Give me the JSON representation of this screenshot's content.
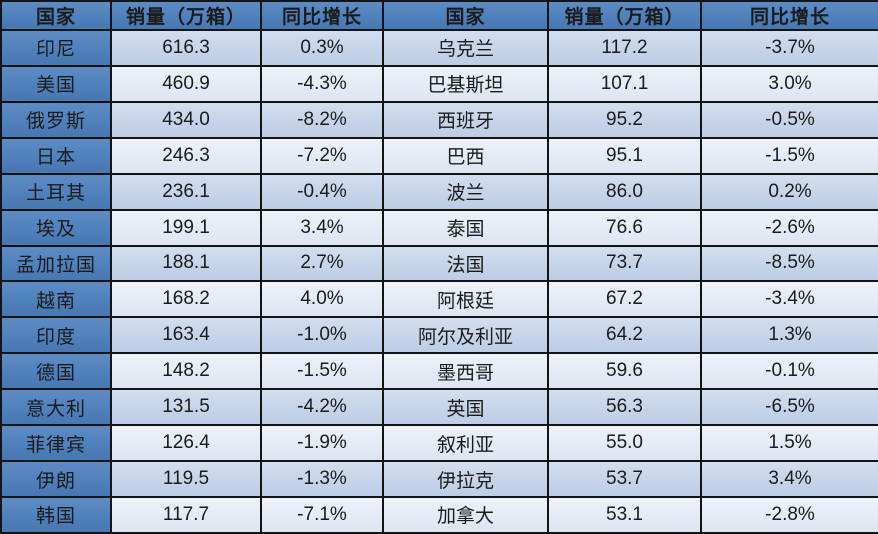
{
  "chart_data": {
    "type": "table",
    "title": "",
    "layout": "two side-by-side tables sharing one grid; blue header row, blue first column on left table, alternating banded rows",
    "column_headers": [
      "国家",
      "销量（万箱）",
      "同比增长"
    ],
    "rows": [
      {
        "left": {
          "country": "印尼",
          "sales": "616.3",
          "growth": "0.3%"
        },
        "right": {
          "country": "乌克兰",
          "sales": "117.2",
          "growth": "-3.7%"
        }
      },
      {
        "left": {
          "country": "美国",
          "sales": "460.9",
          "growth": "-4.3%"
        },
        "right": {
          "country": "巴基斯坦",
          "sales": "107.1",
          "growth": "3.0%"
        }
      },
      {
        "left": {
          "country": "俄罗斯",
          "sales": "434.0",
          "growth": "-8.2%"
        },
        "right": {
          "country": "西班牙",
          "sales": "95.2",
          "growth": "-0.5%"
        }
      },
      {
        "left": {
          "country": "日本",
          "sales": "246.3",
          "growth": "-7.2%"
        },
        "right": {
          "country": "巴西",
          "sales": "95.1",
          "growth": "-1.5%"
        }
      },
      {
        "left": {
          "country": "土耳其",
          "sales": "236.1",
          "growth": "-0.4%"
        },
        "right": {
          "country": "波兰",
          "sales": "86.0",
          "growth": "0.2%"
        }
      },
      {
        "left": {
          "country": "埃及",
          "sales": "199.1",
          "growth": "3.4%"
        },
        "right": {
          "country": "泰国",
          "sales": "76.6",
          "growth": "-2.6%"
        }
      },
      {
        "left": {
          "country": "孟加拉国",
          "sales": "188.1",
          "growth": "2.7%"
        },
        "right": {
          "country": "法国",
          "sales": "73.7",
          "growth": "-8.5%"
        }
      },
      {
        "left": {
          "country": "越南",
          "sales": "168.2",
          "growth": "4.0%"
        },
        "right": {
          "country": "阿根廷",
          "sales": "67.2",
          "growth": "-3.4%"
        }
      },
      {
        "left": {
          "country": "印度",
          "sales": "163.4",
          "growth": "-1.0%"
        },
        "right": {
          "country": "阿尔及利亚",
          "sales": "64.2",
          "growth": "1.3%"
        }
      },
      {
        "left": {
          "country": "德国",
          "sales": "148.2",
          "growth": "-1.5%"
        },
        "right": {
          "country": "墨西哥",
          "sales": "59.6",
          "growth": "-0.1%"
        }
      },
      {
        "left": {
          "country": "意大利",
          "sales": "131.5",
          "growth": "-4.2%"
        },
        "right": {
          "country": "英国",
          "sales": "56.3",
          "growth": "-6.5%"
        }
      },
      {
        "left": {
          "country": "菲律宾",
          "sales": "126.4",
          "growth": "-1.9%"
        },
        "right": {
          "country": "叙利亚",
          "sales": "55.0",
          "growth": "1.5%"
        }
      },
      {
        "left": {
          "country": "伊朗",
          "sales": "119.5",
          "growth": "-1.3%"
        },
        "right": {
          "country": "伊拉克",
          "sales": "53.7",
          "growth": "3.4%"
        }
      },
      {
        "left": {
          "country": "韩国",
          "sales": "117.7",
          "growth": "-7.1%"
        },
        "right": {
          "country": "加拿大",
          "sales": "53.1",
          "growth": "-2.8%"
        }
      }
    ]
  },
  "colors": {
    "header_blue": "#4f81bd",
    "band_dark": "#c6d4e9",
    "band_light": "#e4ebf5",
    "border": "#141414",
    "header_text": "#ffffff",
    "data_text": "#1b1b1b"
  }
}
